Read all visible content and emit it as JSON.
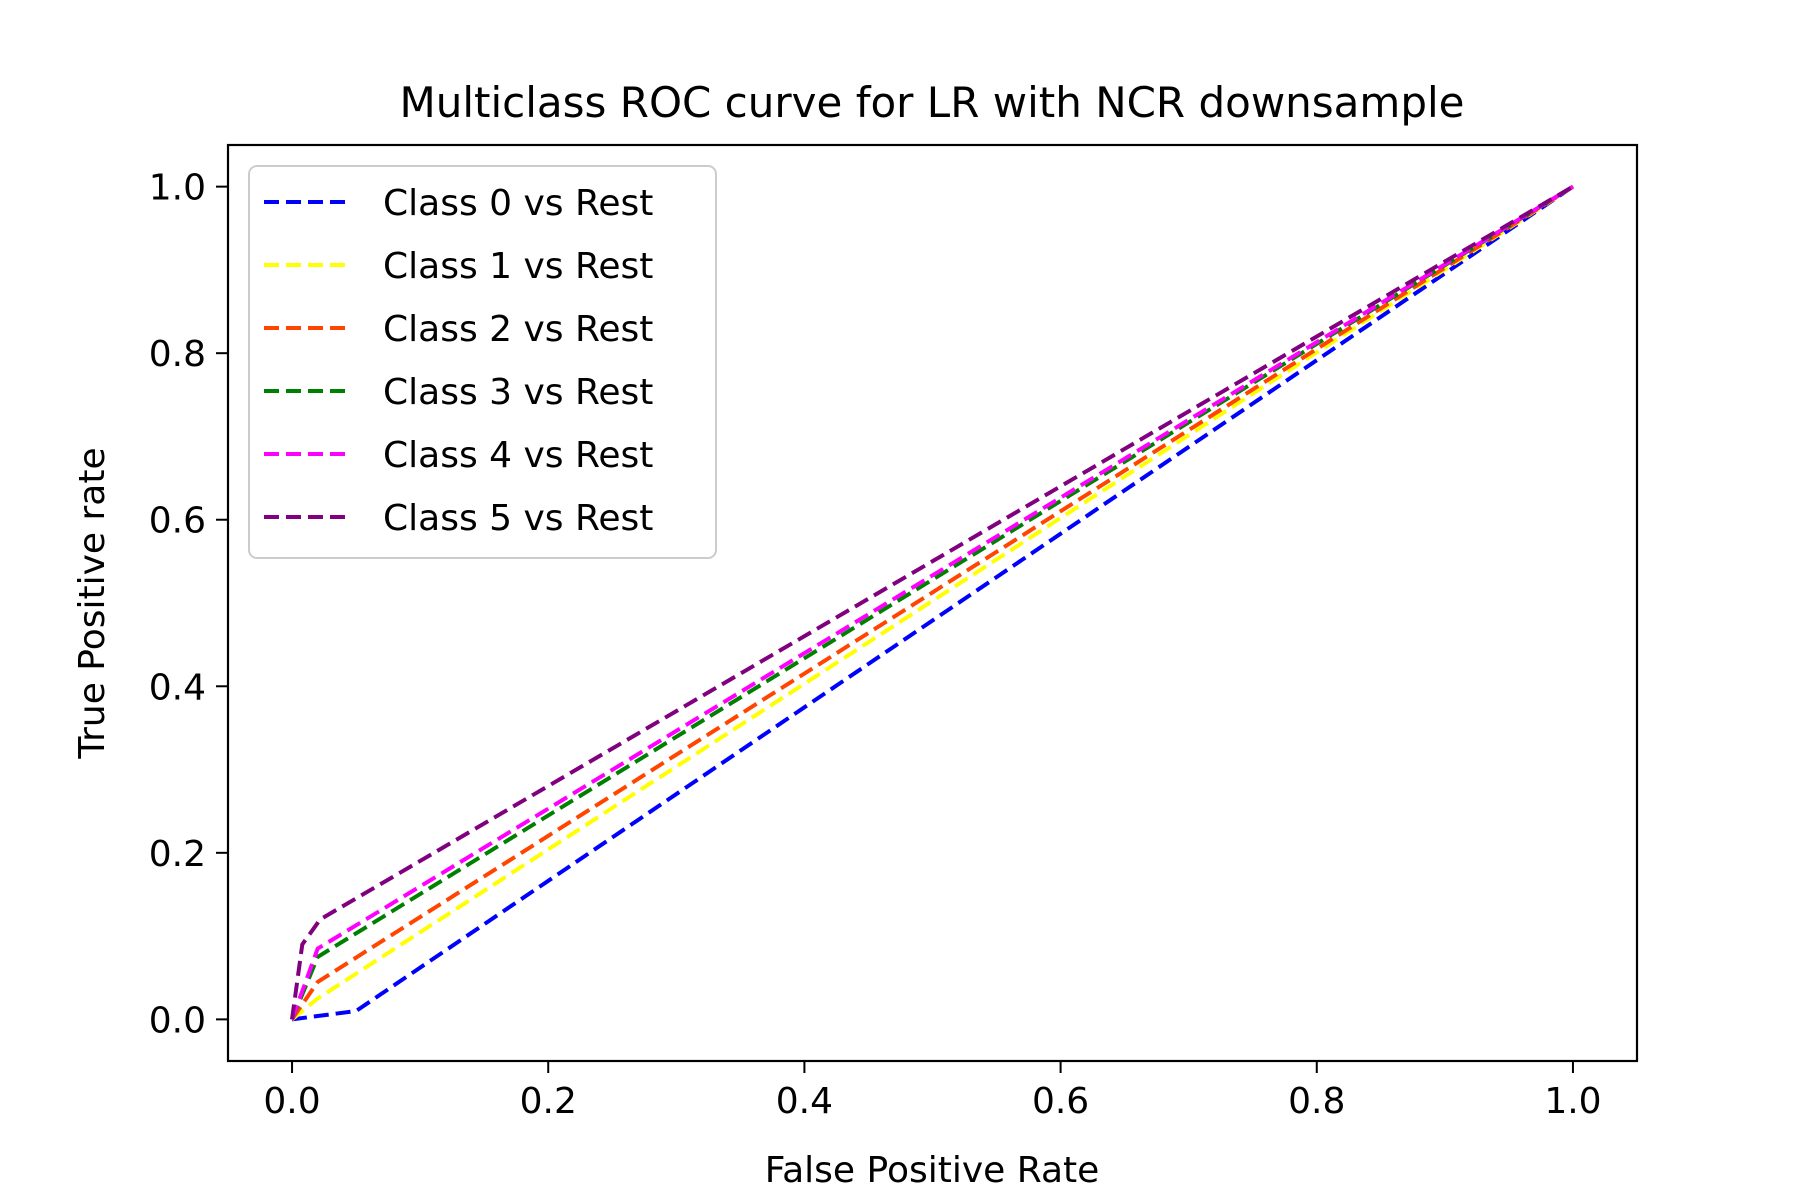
{
  "chart_data": {
    "type": "line",
    "title": "Multiclass ROC curve for LR with NCR downsample",
    "xlabel": "False Positive Rate",
    "ylabel": "True Positive rate",
    "xlim": [
      -0.05,
      1.05
    ],
    "ylim": [
      -0.05,
      1.05
    ],
    "x_ticks": [
      0.0,
      0.2,
      0.4,
      0.6,
      0.8,
      1.0
    ],
    "y_ticks": [
      0.0,
      0.2,
      0.4,
      0.6,
      0.8,
      1.0
    ],
    "x_tick_labels": [
      "0.0",
      "0.2",
      "0.4",
      "0.6",
      "0.8",
      "1.0"
    ],
    "y_tick_labels": [
      "0.0",
      "0.2",
      "0.4",
      "0.6",
      "0.8",
      "1.0"
    ],
    "grid": false,
    "legend_position": "upper-left",
    "line_style": "dashed",
    "series": [
      {
        "name": "Class 0 vs Rest",
        "color": "#0000ff",
        "x": [
          0.0,
          0.05,
          1.0
        ],
        "y": [
          0.0,
          0.01,
          1.0
        ]
      },
      {
        "name": "Class 1 vs Rest",
        "color": "#ffff00",
        "x": [
          0.0,
          0.02,
          1.0
        ],
        "y": [
          0.0,
          0.025,
          1.0
        ]
      },
      {
        "name": "Class 2 vs Rest",
        "color": "#ff4500",
        "x": [
          0.0,
          0.02,
          1.0
        ],
        "y": [
          0.0,
          0.045,
          1.0
        ]
      },
      {
        "name": "Class 3 vs Rest",
        "color": "#008000",
        "x": [
          0.0,
          0.02,
          1.0
        ],
        "y": [
          0.0,
          0.075,
          1.0
        ]
      },
      {
        "name": "Class 4 vs Rest",
        "color": "#ff00ff",
        "x": [
          0.0,
          0.02,
          1.0
        ],
        "y": [
          0.0,
          0.085,
          1.0
        ]
      },
      {
        "name": "Class 5 vs Rest",
        "color": "#800080",
        "x": [
          0.0,
          0.008,
          0.022,
          1.0
        ],
        "y": [
          0.0,
          0.09,
          0.12,
          1.0
        ]
      }
    ]
  }
}
